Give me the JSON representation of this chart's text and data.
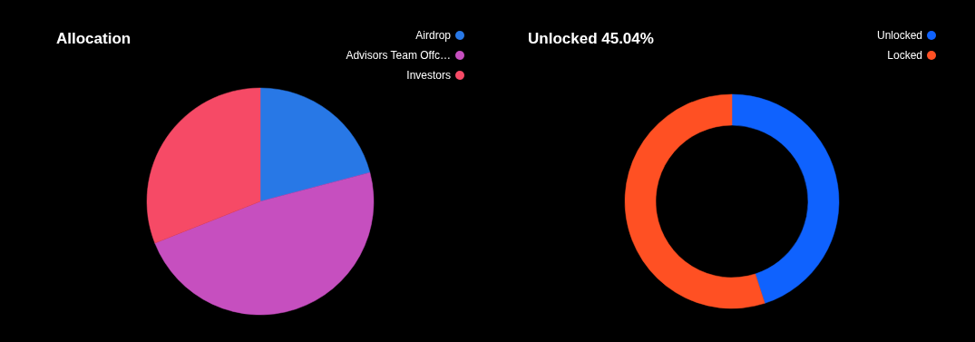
{
  "chart_data": [
    {
      "type": "pie",
      "title": "Allocation",
      "categories": [
        "Airdrop",
        "Advisors Team Offc…",
        "Investors"
      ],
      "values": [
        20.9,
        48.1,
        31.0
      ],
      "colors": [
        "#2878e6",
        "#c64fbf",
        "#f64a66"
      ],
      "legend": "top right"
    },
    {
      "type": "donut",
      "title": "Unlocked 45.04%",
      "categories": [
        "Unlocked",
        "Locked"
      ],
      "values": [
        45.04,
        54.96
      ],
      "colors": [
        "#0f62fe",
        "#ff5023"
      ],
      "legend": "top right"
    }
  ]
}
